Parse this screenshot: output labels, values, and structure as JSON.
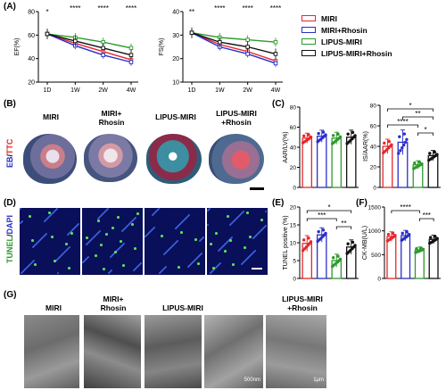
{
  "panels": {
    "A": "(A)",
    "B": "(B)",
    "C": "(C)",
    "D": "(D)",
    "E": "(E)",
    "F": "(F)",
    "G": "(G)"
  },
  "colors": {
    "MIRI": "#e8262b",
    "MIRI+Rhosin": "#2a2ec9",
    "LIPUS-MIRI": "#2c9a2c",
    "LIPUS-MIRI+Rhosin": "#111111"
  },
  "legend": [
    "MIRI",
    "MIRI+Rhosin",
    "LIPUS-MIRI",
    "LIPUS-MIRI+Rhosin"
  ],
  "groups_B": [
    "MIRI",
    "MIRI+\nRhosin",
    "LIPUS-MIRI",
    "LIPUS-MIRI\n+Rhosin"
  ],
  "groups_G": [
    "MIRI",
    "MIRI+\nRhosin",
    "LIPUS-MIRI",
    "LIPUS-MIRI\n+Rhosin"
  ],
  "stain_B": {
    "eb": "EB",
    "sep": "/",
    "ttc": "TTC"
  },
  "stain_D": {
    "tunel": "TUNEL",
    "sep": "/",
    "dapi": "DAPI"
  },
  "em_scale_labels": [
    "500nm",
    "1μm"
  ],
  "chart_data": [
    {
      "id": "EF",
      "type": "line",
      "ylabel": "EF(%)",
      "x": [
        "1D",
        "1W",
        "2W",
        "4W"
      ],
      "ylim": [
        20,
        80
      ],
      "yticks": [
        20,
        40,
        60,
        80
      ],
      "series": [
        {
          "name": "MIRI",
          "values": [
            61,
            53,
            46,
            39
          ]
        },
        {
          "name": "MIRI+Rhosin",
          "values": [
            61,
            51,
            43,
            37
          ]
        },
        {
          "name": "LIPUS-MIRI",
          "values": [
            61,
            58,
            54,
            49
          ]
        },
        {
          "name": "LIPUS-MIRI+Rhosin",
          "values": [
            61,
            55,
            49,
            43
          ]
        }
      ],
      "annotations": [
        "*",
        "****",
        "****",
        "****"
      ]
    },
    {
      "id": "FS",
      "type": "line",
      "ylabel": "FS(%)",
      "x": [
        "1D",
        "1W",
        "2W",
        "4W"
      ],
      "ylim": [
        10,
        40
      ],
      "yticks": [
        10,
        20,
        30,
        40
      ],
      "series": [
        {
          "name": "MIRI",
          "values": [
            31,
            26,
            23,
            19
          ]
        },
        {
          "name": "MIRI+Rhosin",
          "values": [
            31,
            25,
            22,
            18
          ]
        },
        {
          "name": "LIPUS-MIRI",
          "values": [
            31,
            29,
            28,
            27
          ]
        },
        {
          "name": "LIPUS-MIRI+Rhosin",
          "values": [
            31,
            27,
            25,
            22
          ]
        }
      ],
      "annotations": [
        "**",
        "****",
        "****",
        "****"
      ]
    },
    {
      "id": "AAR",
      "type": "bar",
      "ylabel": "AAR/LV(%)",
      "categories": [
        "MIRI",
        "MIRI+Rhosin",
        "LIPUS-MIRI",
        "LIPUS-MIRI+Rhosin"
      ],
      "values": [
        49,
        51,
        49,
        50
      ],
      "errors": [
        5,
        6,
        6,
        7
      ],
      "ylim": [
        0,
        80
      ],
      "yticks": [
        0,
        20,
        40,
        60,
        80
      ]
    },
    {
      "id": "ISAAR",
      "type": "bar",
      "ylabel": "IS/AAR(%)",
      "categories": [
        "MIRI",
        "MIRI+Rhosin",
        "LIPUS-MIRI",
        "LIPUS-MIRI+Rhosin"
      ],
      "values": [
        40,
        44,
        22,
        31
      ],
      "errors": [
        7,
        12,
        4,
        5
      ],
      "ylim": [
        0,
        80
      ],
      "yticks": [
        0,
        20,
        40,
        60,
        80
      ],
      "sig": [
        {
          "from": 0,
          "to": 3,
          "label": "*"
        },
        {
          "from": 1,
          "to": 3,
          "label": "**"
        },
        {
          "from": 0,
          "to": 2,
          "label": "****"
        },
        {
          "from": 2,
          "to": 3,
          "label": "*"
        }
      ]
    },
    {
      "id": "TUNEL",
      "type": "bar",
      "ylabel": "TUNEL positive (%)",
      "categories": [
        "MIRI",
        "MIRI+Rhosin",
        "LIPUS-MIRI",
        "LIPUS-MIRI+Rhosin"
      ],
      "values": [
        9.8,
        12.2,
        5,
        8.8
      ],
      "errors": [
        2.2,
        2,
        1.8,
        2
      ],
      "ylim": [
        0,
        20
      ],
      "yticks": [
        0,
        5,
        10,
        15,
        20
      ],
      "sig": [
        {
          "from": 0,
          "to": 3,
          "label": "*"
        },
        {
          "from": 0,
          "to": 2,
          "label": "***"
        },
        {
          "from": 2,
          "to": 3,
          "label": "**"
        }
      ]
    },
    {
      "id": "CKMB",
      "type": "bar",
      "ylabel": "CK-MB(U/L)",
      "categories": [
        "MIRI",
        "MIRI+Rhosin",
        "LIPUS-MIRI",
        "LIPUS-MIRI+Rhosin"
      ],
      "values": [
        880,
        900,
        600,
        820
      ],
      "errors": [
        100,
        110,
        60,
        90
      ],
      "ylim": [
        0,
        1500
      ],
      "yticks": [
        0,
        500,
        1000,
        1500
      ],
      "sig": [
        {
          "from": 0,
          "to": 2,
          "label": "****"
        },
        {
          "from": 2,
          "to": 3,
          "label": "***"
        }
      ]
    }
  ]
}
